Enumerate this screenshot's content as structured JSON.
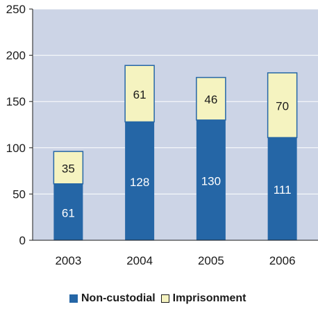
{
  "colors": {
    "plot_bg": "#CCD4E6",
    "non_custodial": "#2566A6",
    "imprisonment": "#F5F3C0",
    "axis": "#1a1a1a",
    "grid": "#ffffff"
  },
  "chart_data": {
    "type": "bar",
    "stacked": true,
    "title": "",
    "xlabel": "",
    "ylabel": "",
    "categories": [
      "2003",
      "2004",
      "2005",
      "2006"
    ],
    "series": [
      {
        "name": "Non-custodial",
        "values": [
          61,
          128,
          130,
          111
        ]
      },
      {
        "name": "Imprisonment",
        "values": [
          35,
          61,
          46,
          70
        ]
      }
    ],
    "ylim": [
      0,
      250
    ],
    "yticks": [
      "0",
      "50",
      "100",
      "150",
      "200",
      "250"
    ],
    "grid": true,
    "legend": "bottom"
  }
}
